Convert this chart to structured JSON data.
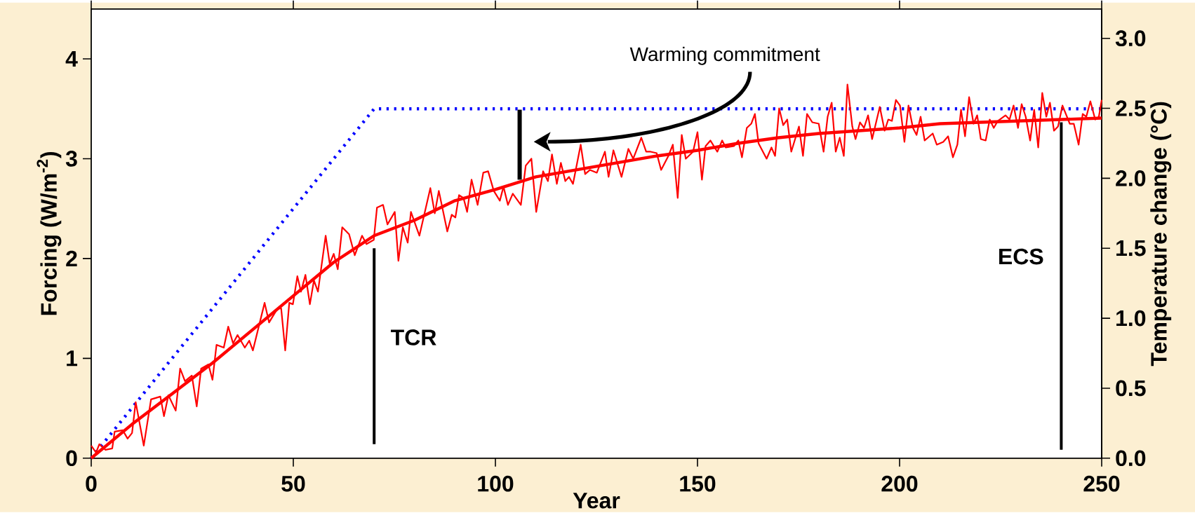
{
  "chart_data": {
    "type": "line",
    "xlabel": "Year",
    "ylabel": "Forcing (W/m$^{-2}$)",
    "y2label": "Temperature change (°C)",
    "xlim": [
      0,
      250
    ],
    "ylim": [
      0,
      4.5
    ],
    "y2lim": [
      0,
      3.21
    ],
    "xticks": [
      0,
      50,
      100,
      150,
      200,
      250
    ],
    "yticks": [
      0,
      1,
      2,
      3,
      4
    ],
    "y2ticks": [
      {
        "value": 0,
        "label": "0.0"
      },
      {
        "value": 0.5,
        "label": "0.5"
      },
      {
        "value": 1,
        "label": "1.0"
      },
      {
        "value": 1.5,
        "label": "1.5"
      },
      {
        "value": 2,
        "label": "2.0"
      },
      {
        "value": 2.5,
        "label": "2.5"
      },
      {
        "value": 3,
        "label": "3.0"
      }
    ],
    "series": [
      {
        "axis": "y2",
        "color": "#ff0000",
        "line_style": "solid",
        "x": [
          0,
          1.2,
          2,
          3.5,
          5.2,
          5.8,
          7.8,
          9,
          10.1,
          11,
          13,
          14.8,
          17.1,
          18,
          19.1,
          20.9,
          22,
          23.2,
          24.9,
          26.1,
          27.2,
          29,
          30,
          31,
          32.8,
          33.9,
          35.1,
          36.2,
          38,
          39.1,
          40,
          42.9,
          44,
          46.1,
          47,
          48,
          49,
          49.9,
          51,
          51.9,
          53,
          54.1,
          55.1,
          56.1,
          58,
          59,
          60,
          61,
          62.1,
          63.8,
          65.2,
          67,
          68.1,
          69.9,
          70.7,
          72.2,
          73.3,
          75.1,
          76,
          77.1,
          78.3,
          79.1,
          81.2,
          83.9,
          85,
          86,
          88.1,
          89.2,
          90.1,
          91,
          92.1,
          93,
          94.1,
          95.6,
          97,
          98.2,
          99.6,
          101.1,
          102,
          103.1,
          104.3,
          106.3,
          107.5,
          108.9,
          110.1,
          111.8,
          113,
          114,
          115.2,
          116.2,
          117.3,
          118.2,
          119.2,
          121.1,
          122.2,
          123.4,
          125.1,
          127.1,
          128,
          129.2,
          131.2,
          132.9,
          134.1,
          136.1,
          137.3,
          138.4,
          139.9,
          141,
          142.8,
          143.9,
          145.1,
          146.1,
          147.1,
          148.9,
          150,
          151.1,
          152,
          153.2,
          154.9,
          156.1,
          157,
          159,
          160.1,
          161,
          162.2,
          163.3,
          164.2,
          165.1,
          167.1,
          168.3,
          169.2,
          170.2,
          171.2,
          172.2,
          173.2,
          175.1,
          176.1,
          177.1,
          178.4,
          180,
          181.2,
          182.2,
          183.2,
          184.2,
          185.2,
          186.2,
          187.1,
          188.3,
          189.1,
          190.2,
          191.2,
          192.2,
          193.2,
          195.1,
          196.3,
          197.2,
          198.1,
          199.1,
          200.1,
          201.2,
          202.2,
          203.3,
          204.2,
          205.2,
          206.2,
          208.2,
          209.2,
          210.8,
          212,
          213.2,
          214.3,
          215.2,
          216.2,
          217.2,
          218.3,
          219.2,
          220.1,
          221.3,
          222.3,
          223.3,
          224.3,
          226.2,
          227.2,
          228.2,
          229.3,
          230.2,
          231.2,
          232.3,
          233.3,
          234.3,
          235.3,
          236.3,
          237.2,
          238.2,
          239.2,
          240.3,
          242.1,
          243.1,
          244.3,
          245.3,
          246.2,
          247.2,
          248.4,
          249.3,
          250
        ],
        "values": [
          0.09,
          0.04,
          0.1,
          0.06,
          0.07,
          0.19,
          0.2,
          0.14,
          0.18,
          0.4,
          0.09,
          0.42,
          0.44,
          0.3,
          0.45,
          0.34,
          0.64,
          0.55,
          0.59,
          0.37,
          0.64,
          0.67,
          0.56,
          0.81,
          0.79,
          0.94,
          0.82,
          0.88,
          0.79,
          0.84,
          0.77,
          1.11,
          0.97,
          1.07,
          1.07,
          0.77,
          1.11,
          1.1,
          1.3,
          1.19,
          1.31,
          1.1,
          1.27,
          1.19,
          1.59,
          1.39,
          1.46,
          1.35,
          1.65,
          1.6,
          1.45,
          1.59,
          1.53,
          1.56,
          1.79,
          1.81,
          1.67,
          1.76,
          1.41,
          1.65,
          1.54,
          1.76,
          1.59,
          1.93,
          1.75,
          1.91,
          1.62,
          1.74,
          1.72,
          1.88,
          1.86,
          1.76,
          1.99,
          1.81,
          2.04,
          2.05,
          1.91,
          1.84,
          1.94,
          1.81,
          1.89,
          1.81,
          2.09,
          2.14,
          1.76,
          2.05,
          1.98,
          2.17,
          1.96,
          2.11,
          1.98,
          2.01,
          1.96,
          2.24,
          2.03,
          2.06,
          2.04,
          2.19,
          2.01,
          2.2,
          2.01,
          2.21,
          2.14,
          2.29,
          2.19,
          2.19,
          2.18,
          2.06,
          2.16,
          2.24,
          1.86,
          2.31,
          2.14,
          2.19,
          2.33,
          1.99,
          2.23,
          2.27,
          2.19,
          2.27,
          2.22,
          2.23,
          2.27,
          2.15,
          2.36,
          2.39,
          2.46,
          2.25,
          2.14,
          2.22,
          2.16,
          2.5,
          2.38,
          2.42,
          2.19,
          2.37,
          2.16,
          2.46,
          2.4,
          2.39,
          2.19,
          2.44,
          2.54,
          2.19,
          2.29,
          2.16,
          2.67,
          2.37,
          2.28,
          2.4,
          2.36,
          2.45,
          2.28,
          2.51,
          2.34,
          2.42,
          2.41,
          2.56,
          2.52,
          2.26,
          2.52,
          2.36,
          2.31,
          2.44,
          2.27,
          2.32,
          2.24,
          2.26,
          2.3,
          2.15,
          2.24,
          2.49,
          2.3,
          2.58,
          2.39,
          2.45,
          2.28,
          2.27,
          2.42,
          2.36,
          2.41,
          2.45,
          2.42,
          2.52,
          2.36,
          2.53,
          2.44,
          2.27,
          2.49,
          2.22,
          2.61,
          2.44,
          2.54,
          2.34,
          2.37,
          2.52,
          2.39,
          2.39,
          2.24,
          2.46,
          2.44,
          2.55,
          2.42,
          2.44,
          2.56
        ]
      },
      {
        "axis": "y2",
        "color": "#ff0000",
        "line_style": "solid",
        "x": [
          0,
          10,
          20,
          30,
          40,
          50,
          60,
          70,
          80,
          90,
          100,
          110,
          120,
          130,
          140,
          150,
          160,
          170,
          180,
          190,
          200,
          210,
          220,
          230,
          240,
          250
        ],
        "values": [
          0,
          0.24,
          0.46,
          0.68,
          0.92,
          1.16,
          1.4,
          1.59,
          1.7,
          1.84,
          1.92,
          2.01,
          2.06,
          2.11,
          2.16,
          2.2,
          2.25,
          2.29,
          2.32,
          2.34,
          2.36,
          2.39,
          2.4,
          2.41,
          2.42,
          2.43
        ]
      },
      {
        "axis": "y",
        "color": "#0000ff",
        "line_style": "dotted",
        "x": [
          0,
          70,
          250
        ],
        "values": [
          0,
          3.5,
          3.5
        ]
      },
      {
        "axis": "y2",
        "color": "#000000",
        "line_style": "solid",
        "x": [
          70,
          70
        ],
        "values": [
          0.1,
          1.5
        ]
      },
      {
        "axis": "y2",
        "color": "#000000",
        "line_style": "solid",
        "x": [
          240,
          240
        ],
        "values": [
          0.06,
          2.4
        ]
      },
      {
        "axis": "y2",
        "color": "#000000",
        "line_style": "solid",
        "x": [
          106,
          106
        ],
        "values": [
          1.99,
          2.49
        ]
      }
    ],
    "annotations": [
      "Warming commitment",
      "TCR",
      "ECS"
    ]
  }
}
